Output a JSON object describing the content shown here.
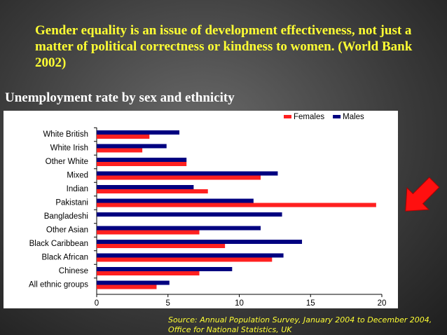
{
  "quote": "Gender equality is an issue of development effectiveness, not just a matter of political correctness or kindness to women. (World Bank 2002)",
  "heading": "Unemployment rate by sex and ethnicity",
  "source": "Source: Annual Population Survey, January 2004 to December 2004, Office for National Statistics, UK",
  "chart_data": {
    "type": "hbar",
    "categories": [
      "White British",
      "White Irish",
      "Other White",
      "Mixed",
      "Indian",
      "Pakistani",
      "Bangladeshi",
      "Other Asian",
      "Black Caribbean",
      "Black African",
      "Chinese",
      "All ethnic groups"
    ],
    "series": [
      {
        "name": "Females",
        "color": "#ff2020",
        "values": [
          3.7,
          3.2,
          6.3,
          11.5,
          7.8,
          19.6,
          null,
          7.2,
          9.0,
          12.3,
          7.2,
          4.2
        ]
      },
      {
        "name": "Males",
        "color": "#000080",
        "values": [
          5.8,
          4.9,
          6.3,
          12.7,
          6.8,
          11.0,
          13.0,
          11.5,
          14.4,
          13.1,
          9.5,
          5.1
        ]
      }
    ],
    "xlim": [
      0,
      20
    ],
    "xticks": [
      0,
      5,
      10,
      15,
      20
    ],
    "grid": false,
    "legend": "top-right"
  }
}
